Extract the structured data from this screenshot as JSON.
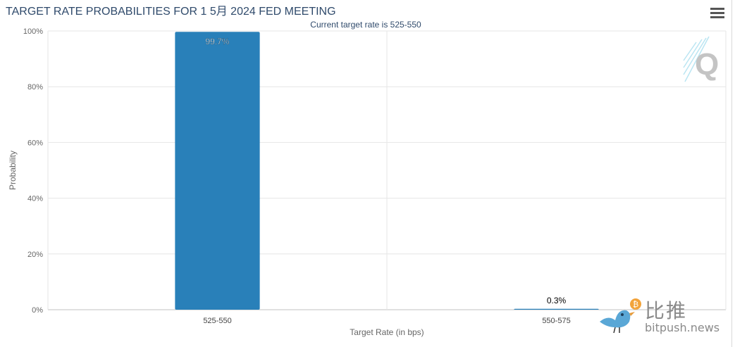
{
  "title": "TARGET RATE PROBABILITIES FOR 1 5月 2024 FED MEETING",
  "watermark": {
    "logo_letter": "Q",
    "brand_cn": "比推",
    "brand_en": "bitpush.news"
  },
  "icons": {
    "menu": "hamburger-menu-icon",
    "bird": "bird-icon",
    "coin": "bitcoin-coin-icon"
  },
  "colors": {
    "bar": "#2980b9",
    "grid": "#e6e6e6",
    "axis_text": "#666666",
    "title": "#2f4a6b"
  },
  "chart_data": {
    "type": "bar",
    "title": "TARGET RATE PROBABILITIES FOR 1 5月 2024 FED MEETING",
    "subtitle": "Current target rate is 525-550",
    "categories": [
      "525-550",
      "550-575"
    ],
    "values": [
      99.7,
      0.3
    ],
    "data_labels": [
      "99.7%",
      "0.3%"
    ],
    "xlabel": "Target Rate (in bps)",
    "ylabel": "Probability",
    "ylim": [
      0,
      100
    ],
    "yticks": [
      0,
      20,
      40,
      60,
      80,
      100
    ],
    "ytick_labels": [
      "0%",
      "20%",
      "40%",
      "60%",
      "80%",
      "100%"
    ],
    "grid": true,
    "legend": "none"
  }
}
